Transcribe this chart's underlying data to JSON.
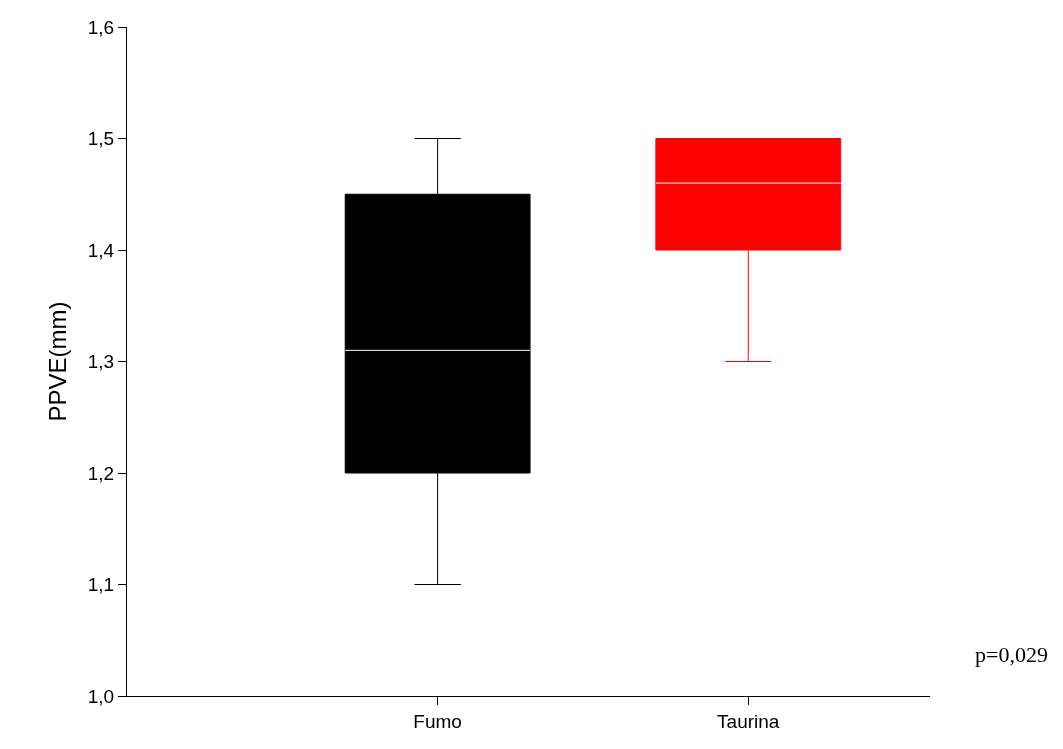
{
  "chart_data": {
    "type": "box",
    "ylabel": "PPVE(mm)",
    "categories": [
      "Fumo",
      "Taurina"
    ],
    "boxes": [
      {
        "low": 1.1,
        "q1": 1.2,
        "median": 1.31,
        "q3": 1.45,
        "high": 1.5
      },
      {
        "low": 1.3,
        "q1": 1.4,
        "median": 1.46,
        "q3": 1.5,
        "high": 1.5
      }
    ],
    "colors": [
      "#000000",
      "#ff0000"
    ],
    "ylim": [
      1.0,
      1.6
    ],
    "yticks": [
      {
        "value": 1.0,
        "label": "1,0"
      },
      {
        "value": 1.1,
        "label": "1,1"
      },
      {
        "value": 1.2,
        "label": "1,2"
      },
      {
        "value": 1.3,
        "label": "1,3"
      },
      {
        "value": 1.4,
        "label": "1,4"
      },
      {
        "value": 1.5,
        "label": "1,5"
      },
      {
        "value": 1.6,
        "label": "1,6"
      }
    ],
    "grid": false,
    "legend": false,
    "annotations": [
      "p=0,029"
    ]
  }
}
